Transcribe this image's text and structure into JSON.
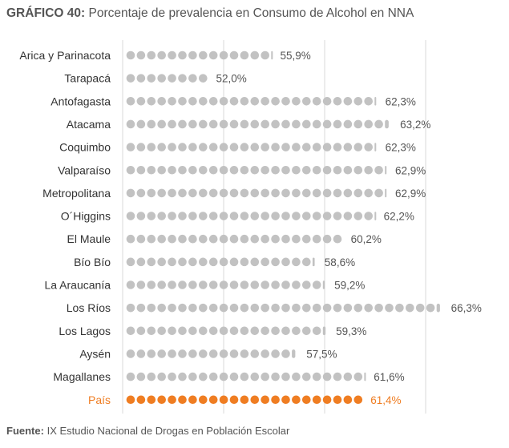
{
  "title": {
    "prefix": "GRÁFICO 40:",
    "text": "Porcentaje de prevalencia en Consumo de Alcohol en NNA"
  },
  "source": {
    "prefix": "Fuente:",
    "text": "IX Estudio Nacional de Drogas en Población Escolar"
  },
  "colors": {
    "dot": "#c2c2c2",
    "highlight": "#ef7d22",
    "label": "#333333",
    "grid": "#d9d9d9"
  },
  "chart_data": {
    "type": "bar",
    "style": "dot-plot",
    "title": "Porcentaje de prevalencia en Consumo de Alcohol en NNA",
    "xlabel": "",
    "ylabel": "",
    "unit": "%",
    "categories": [
      "Arica y Parinacota",
      "Tarapacá",
      "Antofagasta",
      "Atacama",
      "Coquimbo",
      "Valparaíso",
      "Metropolitana",
      "O´Higgins",
      "El Maule",
      "Bío Bío",
      "La Araucanía",
      "Los Ríos",
      "Los Lagos",
      "Aysén",
      "Magallanes",
      "País"
    ],
    "values": [
      55.9,
      52.0,
      62.3,
      63.2,
      62.3,
      62.9,
      62.9,
      62.2,
      60.2,
      58.6,
      59.2,
      66.3,
      59.3,
      57.5,
      61.6,
      61.4
    ],
    "value_labels": [
      "55,9%",
      "52,0%",
      "62,3%",
      "63,2%",
      "62,3%",
      "62,9%",
      "62,9%",
      "62,2%",
      "60,2%",
      "58,6%",
      "59,2%",
      "66,3%",
      "59,3%",
      "57,5%",
      "61,6%",
      "61,4%"
    ],
    "highlight_category": "País",
    "xlim": [
      47,
      67
    ]
  }
}
